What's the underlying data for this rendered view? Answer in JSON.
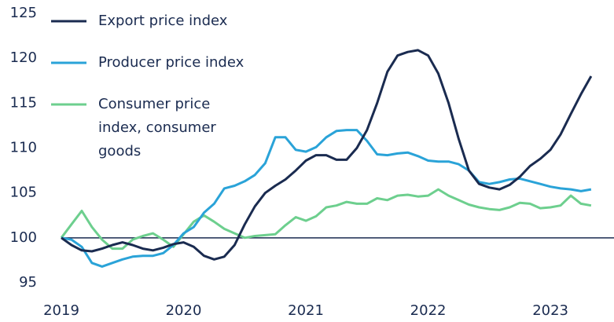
{
  "chart_data": {
    "type": "line",
    "x": [
      2019,
      2019.083,
      2019.167,
      2019.25,
      2019.333,
      2019.417,
      2019.5,
      2019.583,
      2019.667,
      2019.75,
      2019.833,
      2019.917,
      2020,
      2020.083,
      2020.167,
      2020.25,
      2020.333,
      2020.417,
      2020.5,
      2020.583,
      2020.667,
      2020.75,
      2020.833,
      2020.917,
      2021,
      2021.083,
      2021.167,
      2021.25,
      2021.333,
      2021.417,
      2021.5,
      2021.583,
      2021.667,
      2021.75,
      2021.833,
      2021.917,
      2022,
      2022.083,
      2022.167,
      2022.25,
      2022.333,
      2022.417,
      2022.5,
      2022.583,
      2022.667,
      2022.75,
      2022.833,
      2022.917,
      2023,
      2023.083,
      2023.167,
      2023.25,
      2023.333
    ],
    "series": [
      {
        "name": "Export price index",
        "color": "#1a2b50",
        "values": [
          100,
          99.2,
          98.6,
          98.5,
          98.8,
          99.2,
          99.5,
          99.2,
          98.8,
          98.6,
          98.9,
          99.3,
          99.5,
          99,
          98,
          97.6,
          97.9,
          99.2,
          101.5,
          103.5,
          105,
          105.8,
          106.5,
          107.5,
          108.6,
          109.2,
          109.2,
          108.7,
          108.7,
          110,
          112,
          115,
          118.5,
          120.3,
          120.7,
          120.9,
          120.3,
          118.3,
          115,
          111,
          107.5,
          106,
          105.6,
          105.4,
          105.9,
          106.8,
          108,
          108.8,
          109.8,
          111.5,
          113.8,
          116,
          118
        ]
      },
      {
        "name": "Producer price index",
        "color": "#2aa3d8",
        "values": [
          100,
          99.8,
          99,
          97.2,
          96.8,
          97.2,
          97.6,
          97.9,
          98,
          98,
          98.3,
          99.2,
          100.5,
          101.2,
          102.8,
          103.8,
          105.5,
          105.8,
          106.3,
          107,
          108.3,
          111.2,
          111.2,
          109.8,
          109.6,
          110.1,
          111.2,
          111.9,
          112,
          112,
          110.8,
          109.3,
          109.2,
          109.4,
          109.5,
          109.1,
          108.6,
          108.5,
          108.5,
          108.2,
          107.5,
          106.2,
          106,
          106.2,
          106.5,
          106.6,
          106.3,
          106,
          105.7,
          105.5,
          105.4,
          105.2,
          105.4
        ]
      },
      {
        "name": "Consumer price index, consumer goods",
        "color": "#6dcf8e",
        "values": [
          100,
          101.5,
          103,
          101.2,
          99.8,
          98.8,
          98.8,
          99.8,
          100.2,
          100.5,
          99.8,
          99,
          100.4,
          101.8,
          102.5,
          101.8,
          101,
          100.5,
          100,
          100.2,
          100.3,
          100.4,
          101.4,
          102.3,
          101.9,
          102.4,
          103.4,
          103.6,
          104,
          103.8,
          103.8,
          104.4,
          104.2,
          104.7,
          104.8,
          104.6,
          104.7,
          105.4,
          104.7,
          104.2,
          103.7,
          103.4,
          103.2,
          103.1,
          103.4,
          103.9,
          103.8,
          103.3,
          103.4,
          103.6,
          104.7,
          103.8,
          103.6
        ]
      }
    ],
    "xlim": [
      2019,
      2023.52
    ],
    "xticks": [
      2019,
      2020,
      2021,
      2022,
      2023
    ],
    "ylim": [
      95,
      125
    ],
    "yticks": [
      95,
      100,
      105,
      110,
      115,
      120,
      125
    ],
    "reference_line": 100,
    "reference_color": "#1a2b50",
    "legend": "top-left",
    "grid": false
  }
}
